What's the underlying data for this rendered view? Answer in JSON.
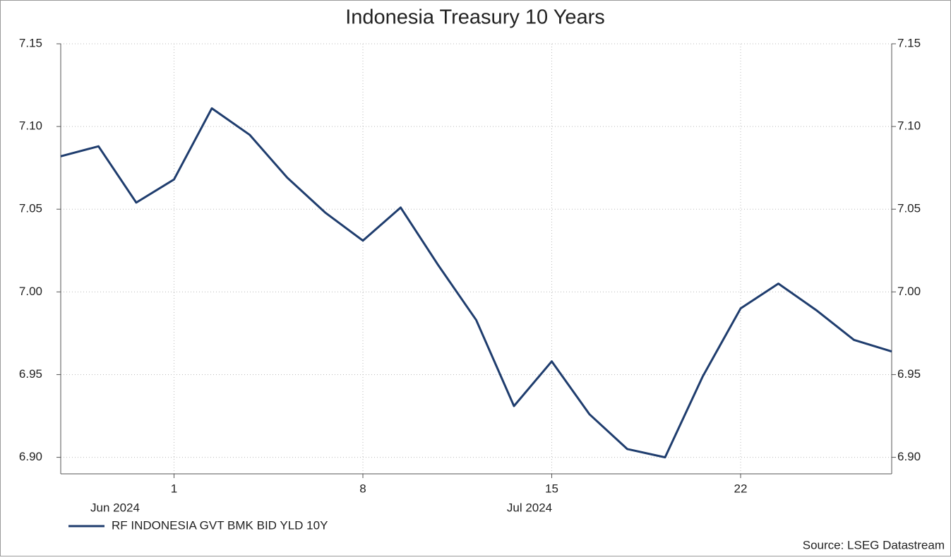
{
  "chart_data": {
    "type": "line",
    "title": "Indonesia Treasury 10 Years",
    "categories": [
      null,
      null,
      null,
      "1",
      null,
      null,
      null,
      null,
      "8",
      null,
      null,
      null,
      null,
      "15",
      null,
      null,
      null,
      null,
      "22",
      null,
      null,
      null,
      null
    ],
    "month_labels": [
      "Jun 2024",
      "Jul 2024"
    ],
    "series": [
      {
        "name": "RF INDONESIA GVT BMK BID YLD 10Y",
        "color": "#1f3d6e",
        "values": [
          7.082,
          7.088,
          7.054,
          7.068,
          7.111,
          7.095,
          7.069,
          7.048,
          7.031,
          7.051,
          7.016,
          6.983,
          6.931,
          6.958,
          6.926,
          6.905,
          6.9,
          6.949,
          6.99,
          7.005,
          6.989,
          6.971,
          6.964
        ]
      }
    ],
    "ylim": [
      6.89,
      7.15
    ],
    "yticks": [
      {
        "value": 6.9,
        "label": "6.90"
      },
      6.95,
      {
        "value": 7.0,
        "label": "7.00"
      },
      7.05,
      {
        "value": 7.1,
        "label": "7.10"
      },
      7.15
    ],
    "grid": true,
    "right_axis": true,
    "source": "Source: LSEG Datastream"
  }
}
